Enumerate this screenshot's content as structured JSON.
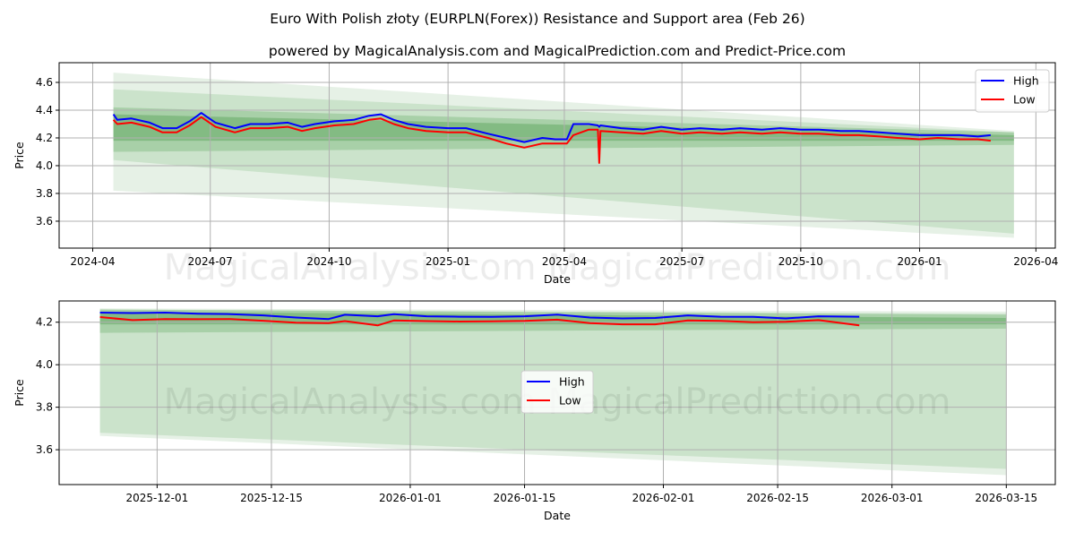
{
  "title": "Euro With Polish złoty (EURPLN(Forex)) Resistance and Support area (Feb 26)",
  "subtitle": "powered by MagicalAnalysis.com and MagicalPrediction.com and Predict-Price.com",
  "watermark": "MagicalAnalysis.com   MagicalPrediction.com",
  "colors": {
    "high": "#0000ff",
    "low": "#ff0000",
    "band": "#2e8b2e",
    "grid": "#b0b0b0"
  },
  "chart_data": [
    {
      "type": "line",
      "xlabel": "Date",
      "ylabel": "Price",
      "ylim": [
        3.406,
        4.742
      ],
      "xlim": [
        "2024-03-06",
        "2026-04-16"
      ],
      "grid": true,
      "legend": "top-right",
      "yticks": [
        3.6,
        3.8,
        4.0,
        4.2,
        4.4,
        4.6
      ],
      "ytick_labels": [
        "3.6",
        "3.8",
        "4.0",
        "4.2",
        "4.4",
        "4.6"
      ],
      "xticks": [
        "2024-04-01",
        "2024-07-01",
        "2024-10-01",
        "2025-01-01",
        "2025-04-01",
        "2025-07-01",
        "2025-10-01",
        "2026-01-01",
        "2026-04-01"
      ],
      "xtick_labels": [
        "2024-04",
        "2024-07",
        "2024-10",
        "2025-01",
        "2025-04",
        "2025-07",
        "2025-10",
        "2026-01",
        "2026-04"
      ],
      "bands": {
        "start": "2024-04-17",
        "end": "2026-03-15",
        "layers": [
          {
            "start": [
              3.82,
              4.67
            ],
            "end": [
              3.48,
              4.25
            ],
            "opacity": 0.12
          },
          {
            "start": [
              4.04,
              4.55
            ],
            "end": [
              3.51,
              4.24
            ],
            "opacity": 0.14
          },
          {
            "start": [
              4.1,
              4.42
            ],
            "end": [
              4.15,
              4.24
            ],
            "opacity": 0.22
          },
          {
            "start": [
              4.18,
              4.37
            ],
            "end": [
              4.18,
              4.22
            ],
            "opacity": 0.3
          }
        ]
      },
      "x": [
        "2024-04-17",
        "2024-04-20",
        "2024-05-01",
        "2024-05-15",
        "2024-05-25",
        "2024-06-05",
        "2024-06-15",
        "2024-06-24",
        "2024-07-05",
        "2024-07-20",
        "2024-08-01",
        "2024-08-15",
        "2024-08-30",
        "2024-09-10",
        "2024-09-20",
        "2024-10-05",
        "2024-10-20",
        "2024-11-01",
        "2024-11-10",
        "2024-11-20",
        "2024-12-01",
        "2024-12-15",
        "2025-01-01",
        "2025-01-15",
        "2025-02-01",
        "2025-02-15",
        "2025-03-01",
        "2025-03-15",
        "2025-03-25",
        "2025-04-03",
        "2025-04-08",
        "2025-04-20",
        "2025-04-27",
        "2025-04-28",
        "2025-04-29",
        "2025-05-15",
        "2025-06-01",
        "2025-06-15",
        "2025-07-01",
        "2025-07-15",
        "2025-08-01",
        "2025-08-15",
        "2025-09-01",
        "2025-09-15",
        "2025-10-01",
        "2025-10-15",
        "2025-11-01",
        "2025-11-15",
        "2025-12-01",
        "2025-12-15",
        "2026-01-01",
        "2026-01-15",
        "2026-02-01",
        "2026-02-15",
        "2026-02-25"
      ],
      "series": [
        {
          "name": "High",
          "values": [
            4.37,
            4.33,
            4.34,
            4.31,
            4.27,
            4.27,
            4.32,
            4.38,
            4.31,
            4.27,
            4.3,
            4.3,
            4.31,
            4.28,
            4.3,
            4.32,
            4.33,
            4.36,
            4.37,
            4.33,
            4.3,
            4.28,
            4.27,
            4.27,
            4.23,
            4.2,
            4.17,
            4.2,
            4.19,
            4.19,
            4.3,
            4.3,
            4.29,
            4.28,
            4.29,
            4.27,
            4.26,
            4.28,
            4.26,
            4.27,
            4.26,
            4.27,
            4.26,
            4.27,
            4.26,
            4.26,
            4.25,
            4.25,
            4.24,
            4.23,
            4.22,
            4.22,
            4.22,
            4.21,
            4.22
          ]
        },
        {
          "name": "Low",
          "values": [
            4.33,
            4.3,
            4.31,
            4.28,
            4.24,
            4.24,
            4.29,
            4.35,
            4.28,
            4.24,
            4.27,
            4.27,
            4.28,
            4.25,
            4.27,
            4.29,
            4.3,
            4.33,
            4.34,
            4.3,
            4.27,
            4.25,
            4.24,
            4.24,
            4.2,
            4.16,
            4.13,
            4.16,
            4.16,
            4.16,
            4.22,
            4.26,
            4.26,
            4.02,
            4.25,
            4.24,
            4.23,
            4.25,
            4.23,
            4.24,
            4.23,
            4.24,
            4.23,
            4.24,
            4.23,
            4.23,
            4.22,
            4.22,
            4.21,
            4.2,
            4.19,
            4.2,
            4.19,
            4.19,
            4.18
          ]
        }
      ]
    },
    {
      "type": "line",
      "xlabel": "Date",
      "ylabel": "Price",
      "ylim": [
        3.436,
        4.3
      ],
      "xlim": [
        "2025-11-19",
        "2026-03-21"
      ],
      "grid": true,
      "legend": "center",
      "yticks": [
        3.6,
        3.8,
        4.0,
        4.2
      ],
      "ytick_labels": [
        "3.6",
        "3.8",
        "4.0",
        "4.2"
      ],
      "xticks": [
        "2025-12-01",
        "2025-12-15",
        "2026-01-01",
        "2026-01-15",
        "2026-02-01",
        "2026-02-15",
        "2026-03-01",
        "2026-03-15"
      ],
      "xtick_labels": [
        "2025-12-01",
        "2025-12-15",
        "2026-01-01",
        "2026-01-15",
        "2026-02-01",
        "2026-02-15",
        "2026-03-01",
        "2026-03-15"
      ],
      "bands": {
        "start": "2025-11-24",
        "end": "2026-03-15",
        "layers": [
          {
            "start": [
              3.665,
              4.265
            ],
            "end": [
              3.48,
              4.25
            ],
            "opacity": 0.12
          },
          {
            "start": [
              3.68,
              4.26
            ],
            "end": [
              3.51,
              4.24
            ],
            "opacity": 0.14
          },
          {
            "start": [
              4.15,
              4.26
            ],
            "end": [
              4.17,
              4.235
            ],
            "opacity": 0.22
          },
          {
            "start": [
              4.19,
              4.25
            ],
            "end": [
              4.19,
              4.22
            ],
            "opacity": 0.3
          }
        ]
      },
      "x": [
        "2025-11-24",
        "2025-11-28",
        "2025-12-02",
        "2025-12-06",
        "2025-12-10",
        "2025-12-14",
        "2025-12-18",
        "2025-12-22",
        "2025-12-24",
        "2025-12-28",
        "2025-12-30",
        "2026-01-03",
        "2026-01-07",
        "2026-01-11",
        "2026-01-15",
        "2026-01-19",
        "2026-01-23",
        "2026-01-27",
        "2026-01-31",
        "2026-02-04",
        "2026-02-08",
        "2026-02-12",
        "2026-02-16",
        "2026-02-20",
        "2026-02-25"
      ],
      "series": [
        {
          "name": "High",
          "values": [
            4.245,
            4.243,
            4.245,
            4.24,
            4.238,
            4.232,
            4.222,
            4.215,
            4.235,
            4.228,
            4.238,
            4.228,
            4.226,
            4.225,
            4.228,
            4.236,
            4.222,
            4.218,
            4.22,
            4.232,
            4.226,
            4.225,
            4.218,
            4.228,
            4.226
          ]
        },
        {
          "name": "Low",
          "values": [
            4.224,
            4.21,
            4.215,
            4.214,
            4.215,
            4.207,
            4.198,
            4.196,
            4.205,
            4.185,
            4.208,
            4.205,
            4.203,
            4.204,
            4.206,
            4.212,
            4.196,
            4.19,
            4.19,
            4.208,
            4.206,
            4.2,
            4.202,
            4.21,
            4.185
          ]
        }
      ]
    }
  ]
}
